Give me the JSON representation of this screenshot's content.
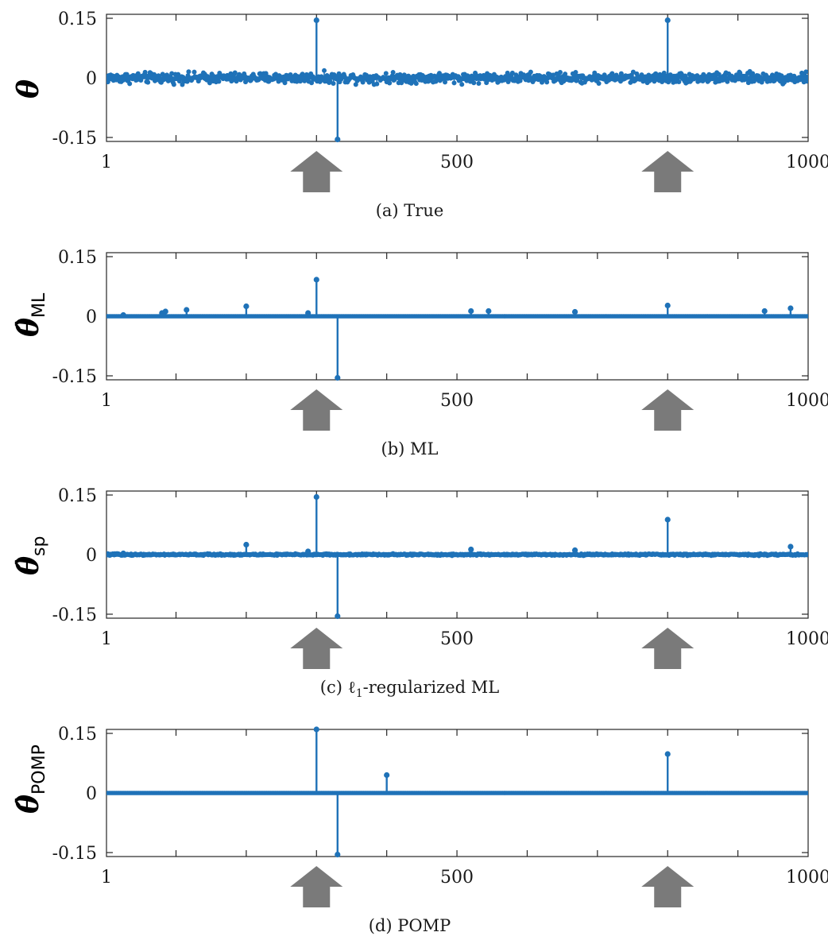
{
  "figure": {
    "series_color": "#1f72b8",
    "arrow_color": "#7a7a7a"
  },
  "chart_data": [
    {
      "type": "stem",
      "caption": "(a) True",
      "ylabel": "θ",
      "ylabel_subscript": "",
      "xlim": [
        1,
        1000
      ],
      "ylim": [
        -0.16,
        0.16
      ],
      "x_ticks": [
        1,
        500,
        1000
      ],
      "y_ticks": [
        0.15,
        0,
        -0.15
      ],
      "x_tick_labels": [
        "1",
        "500",
        "1000"
      ],
      "y_tick_labels": [
        "0.15",
        "0",
        "-0.15"
      ],
      "noise": {
        "n": 1000,
        "amplitude": 0.009
      },
      "spikes": [
        [
          300,
          0.145
        ],
        [
          330,
          -0.155
        ],
        [
          800,
          0.145
        ]
      ],
      "arrows_at": [
        300,
        800
      ]
    },
    {
      "type": "stem",
      "caption": "(b) ML",
      "ylabel": "θ̂",
      "ylabel_subscript": "ML",
      "xlim": [
        1,
        1000
      ],
      "ylim": [
        -0.16,
        0.16
      ],
      "x_ticks": [
        1,
        500,
        1000
      ],
      "y_ticks": [
        0.15,
        0,
        -0.15
      ],
      "x_tick_labels": [
        "1",
        "500",
        "1000"
      ],
      "y_tick_labels": [
        "0.15",
        "0",
        "-0.15"
      ],
      "noise": {
        "n": 1000,
        "amplitude": 0.0
      },
      "spikes": [
        [
          25,
          0.003
        ],
        [
          80,
          0.008
        ],
        [
          85,
          0.012
        ],
        [
          115,
          0.016
        ],
        [
          200,
          0.025
        ],
        [
          288,
          0.008
        ],
        [
          300,
          0.092
        ],
        [
          330,
          -0.155
        ],
        [
          520,
          0.013
        ],
        [
          545,
          0.013
        ],
        [
          668,
          0.011
        ],
        [
          800,
          0.027
        ],
        [
          938,
          0.013
        ],
        [
          975,
          0.02
        ]
      ],
      "arrows_at": [
        300,
        800
      ]
    },
    {
      "type": "stem",
      "caption": "(c) ℓ1-regularized ML",
      "ylabel": "θ̂",
      "ylabel_subscript": "sp",
      "xlim": [
        1,
        1000
      ],
      "ylim": [
        -0.16,
        0.16
      ],
      "x_ticks": [
        1,
        500,
        1000
      ],
      "y_ticks": [
        0.15,
        0,
        -0.15
      ],
      "x_tick_labels": [
        "1",
        "500",
        "1000"
      ],
      "y_tick_labels": [
        "0.15",
        "0",
        "-0.15"
      ],
      "noise": {
        "n": 1000,
        "amplitude": 0.0015
      },
      "spikes": [
        [
          25,
          0.003
        ],
        [
          200,
          0.025
        ],
        [
          288,
          0.008
        ],
        [
          300,
          0.145
        ],
        [
          330,
          -0.155
        ],
        [
          520,
          0.013
        ],
        [
          668,
          0.011
        ],
        [
          800,
          0.088
        ],
        [
          975,
          0.02
        ]
      ],
      "arrows_at": [
        300,
        800
      ]
    },
    {
      "type": "stem",
      "caption": "(d) POMP",
      "ylabel": "θ̂",
      "ylabel_subscript": "POMP",
      "xlim": [
        1,
        1000
      ],
      "ylim": [
        -0.16,
        0.16
      ],
      "x_ticks": [
        1,
        500,
        1000
      ],
      "y_ticks": [
        0.15,
        0,
        -0.15
      ],
      "x_tick_labels": [
        "1",
        "500",
        "1000"
      ],
      "y_tick_labels": [
        "0.15",
        "0",
        "-0.15"
      ],
      "noise": {
        "n": 1000,
        "amplitude": 0.0
      },
      "spikes": [
        [
          300,
          0.16
        ],
        [
          330,
          -0.155
        ],
        [
          400,
          0.045
        ],
        [
          800,
          0.098
        ]
      ],
      "arrows_at": [
        300,
        800
      ]
    }
  ]
}
